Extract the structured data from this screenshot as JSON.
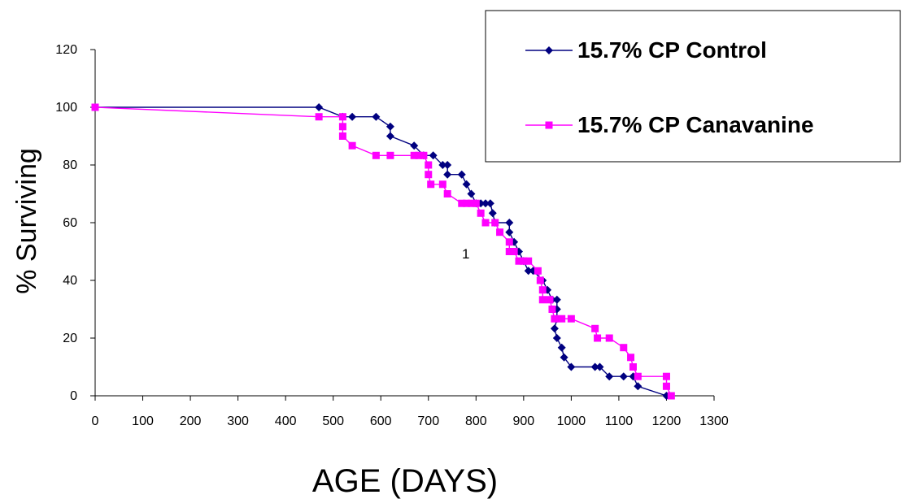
{
  "chart_data": {
    "type": "line",
    "title": "",
    "xlabel": "AGE (DAYS)",
    "ylabel": "% Surviving",
    "xlim": [
      0,
      1300
    ],
    "ylim": [
      0,
      120
    ],
    "xticks": [
      0,
      100,
      200,
      300,
      400,
      500,
      600,
      700,
      800,
      900,
      1000,
      1100,
      1200,
      1300
    ],
    "yticks": [
      0,
      20,
      40,
      60,
      80,
      100,
      120
    ],
    "grid": false,
    "legend_position": "top-right",
    "annotations": [
      {
        "text": "1",
        "x": 780,
        "y": 50
      }
    ],
    "series": [
      {
        "name": "15.7% CP Control",
        "color": "#000080",
        "marker": "diamond",
        "points": [
          [
            0,
            100
          ],
          [
            470,
            100
          ],
          [
            520,
            96.7
          ],
          [
            540,
            96.7
          ],
          [
            590,
            96.7
          ],
          [
            620,
            93.3
          ],
          [
            620,
            90
          ],
          [
            670,
            86.7
          ],
          [
            690,
            83.3
          ],
          [
            710,
            83.3
          ],
          [
            730,
            80
          ],
          [
            740,
            80
          ],
          [
            740,
            76.7
          ],
          [
            770,
            76.7
          ],
          [
            780,
            73.3
          ],
          [
            790,
            70
          ],
          [
            800,
            66.7
          ],
          [
            810,
            66.7
          ],
          [
            820,
            66.7
          ],
          [
            830,
            66.7
          ],
          [
            835,
            63.3
          ],
          [
            840,
            60
          ],
          [
            870,
            60
          ],
          [
            870,
            56.7
          ],
          [
            880,
            53.3
          ],
          [
            890,
            50
          ],
          [
            900,
            46.7
          ],
          [
            910,
            43.3
          ],
          [
            920,
            43.3
          ],
          [
            940,
            40
          ],
          [
            950,
            36.7
          ],
          [
            960,
            33.3
          ],
          [
            970,
            33.3
          ],
          [
            970,
            30
          ],
          [
            970,
            26.7
          ],
          [
            965,
            23.3
          ],
          [
            970,
            20
          ],
          [
            980,
            16.7
          ],
          [
            985,
            13.3
          ],
          [
            1000,
            10
          ],
          [
            1050,
            10
          ],
          [
            1060,
            10
          ],
          [
            1080,
            6.7
          ],
          [
            1110,
            6.7
          ],
          [
            1130,
            6.7
          ],
          [
            1140,
            3.3
          ],
          [
            1200,
            0
          ]
        ]
      },
      {
        "name": "15.7% CP Canavanine",
        "color": "#FF00FF",
        "marker": "square",
        "points": [
          [
            0,
            100
          ],
          [
            470,
            96.7
          ],
          [
            520,
            96.7
          ],
          [
            520,
            93.3
          ],
          [
            520,
            90
          ],
          [
            540,
            86.7
          ],
          [
            590,
            83.3
          ],
          [
            620,
            83.3
          ],
          [
            670,
            83.3
          ],
          [
            680,
            83.3
          ],
          [
            690,
            83.3
          ],
          [
            700,
            80
          ],
          [
            700,
            76.7
          ],
          [
            705,
            73.3
          ],
          [
            730,
            73.3
          ],
          [
            740,
            70
          ],
          [
            770,
            66.7
          ],
          [
            780,
            66.7
          ],
          [
            790,
            66.7
          ],
          [
            800,
            66.7
          ],
          [
            810,
            63.3
          ],
          [
            820,
            60
          ],
          [
            840,
            60
          ],
          [
            850,
            56.7
          ],
          [
            870,
            53.3
          ],
          [
            870,
            50
          ],
          [
            880,
            50
          ],
          [
            890,
            46.7
          ],
          [
            900,
            46.7
          ],
          [
            910,
            46.7
          ],
          [
            930,
            43.3
          ],
          [
            935,
            40
          ],
          [
            940,
            36.7
          ],
          [
            940,
            33.3
          ],
          [
            955,
            33.3
          ],
          [
            960,
            30
          ],
          [
            965,
            26.7
          ],
          [
            980,
            26.7
          ],
          [
            1000,
            26.7
          ],
          [
            1050,
            23.3
          ],
          [
            1055,
            20
          ],
          [
            1080,
            20
          ],
          [
            1110,
            16.7
          ],
          [
            1125,
            13.3
          ],
          [
            1130,
            10
          ],
          [
            1140,
            6.7
          ],
          [
            1200,
            6.7
          ],
          [
            1200,
            3.3
          ],
          [
            1210,
            0
          ]
        ]
      }
    ]
  }
}
